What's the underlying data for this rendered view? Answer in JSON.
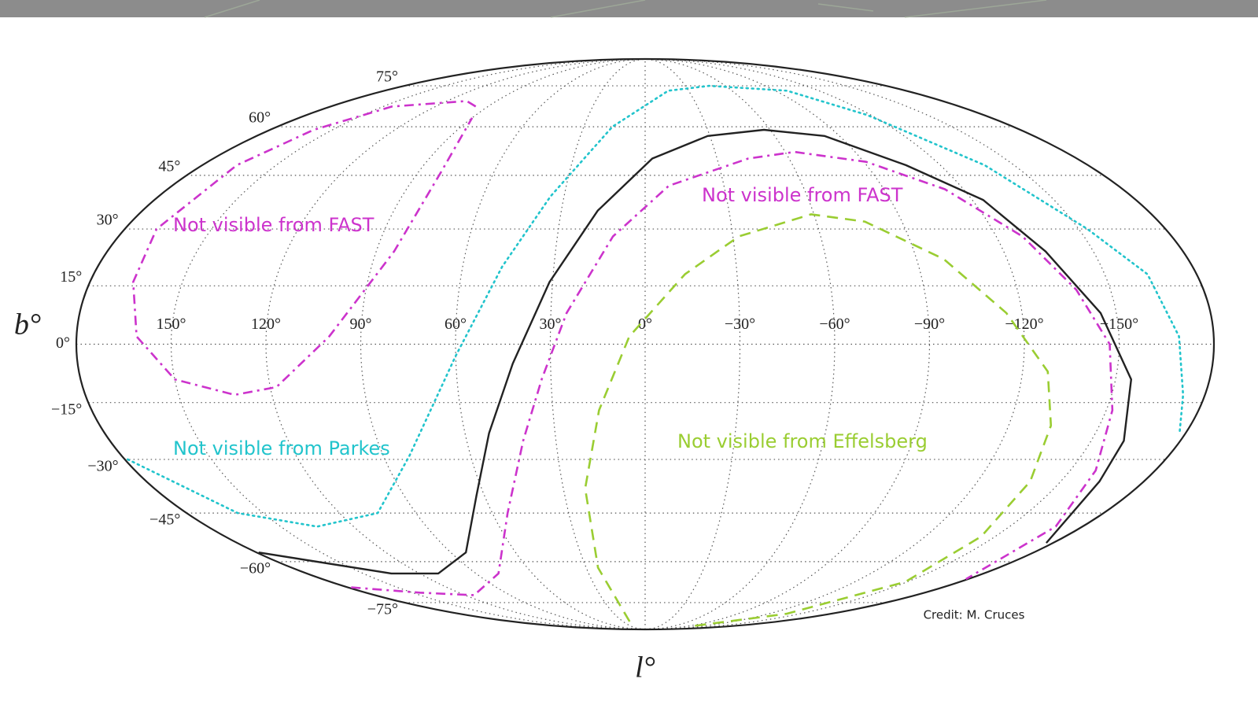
{
  "chart_data": {
    "type": "mollweide",
    "xlabel": "l°",
    "ylabel": "b°",
    "xlim": [
      180,
      -180
    ],
    "ylim": [
      -90,
      90
    ],
    "grid": true,
    "xticks": [
      {
        "value": 150,
        "label": "150°"
      },
      {
        "value": 120,
        "label": "120°"
      },
      {
        "value": 90,
        "label": "90°"
      },
      {
        "value": 60,
        "label": "60°"
      },
      {
        "value": 30,
        "label": "30°"
      },
      {
        "value": 0,
        "label": "0°"
      },
      {
        "value": -30,
        "label": "−30°"
      },
      {
        "value": -60,
        "label": "−60°"
      },
      {
        "value": -90,
        "label": "−90°"
      },
      {
        "value": -120,
        "label": "−120°"
      },
      {
        "value": -150,
        "label": "−150°"
      }
    ],
    "yticks": [
      {
        "value": 75,
        "label": "75°"
      },
      {
        "value": 60,
        "label": "60°"
      },
      {
        "value": 45,
        "label": "45°"
      },
      {
        "value": 30,
        "label": "30°"
      },
      {
        "value": 15,
        "label": "15°"
      },
      {
        "value": 0,
        "label": "0°"
      },
      {
        "value": -15,
        "label": "−15°"
      },
      {
        "value": -30,
        "label": "−30°"
      },
      {
        "value": -45,
        "label": "−45°"
      },
      {
        "value": -60,
        "label": "−60°"
      },
      {
        "value": -75,
        "label": "−75°"
      }
    ],
    "series": [
      {
        "color": "#222222",
        "linestyle": "solid",
        "x": [
          179,
          135,
          110,
          83,
          63,
          52,
          42,
          31,
          17,
          -3,
          -29,
          -57,
          -83,
          -106,
          -124,
          -134,
          -145,
          -155,
          -161,
          -164,
          -177
        ],
        "values": [
          -57,
          -64,
          -64,
          -57,
          -40,
          -23,
          -5,
          16,
          35,
          50,
          57,
          59,
          57,
          48,
          38,
          24,
          8,
          -9,
          -25,
          -36,
          -54
        ]
      },
      {
        "color": "#cc33cc",
        "linestyle": "dashdot",
        "x": [
          97,
          108,
          145,
          159,
          166,
          169,
          166,
          161,
          150,
          132,
          118,
          100,
          84,
          81,
          90,
          null,
          178,
          145,
          114,
          78,
          54,
          41,
          33,
          25,
          11,
          -9,
          -43,
          -64,
          -91,
          -113,
          -129,
          -139,
          -147,
          -152,
          -159,
          -169,
          -179
        ],
        "values": [
          67,
          69,
          67,
          59,
          48,
          30,
          16,
          2,
          -9,
          -13,
          -11,
          2,
          24,
          46,
          63,
          null,
          -69,
          -71,
          -72,
          -64,
          -45,
          -25,
          -9,
          8,
          28,
          42,
          50,
          52,
          49,
          41,
          28,
          14,
          0,
          -17,
          -33,
          -49,
          -66
        ]
      },
      {
        "color": "#22c4cc",
        "linestyle": "dotted",
        "x": [
          179,
          160,
          135,
          105,
          81,
          60,
          47,
          35,
          16,
          -16,
          -48,
          -98,
          -118,
          -138,
          -153,
          -164,
          -169,
          -173,
          -178
        ],
        "values": [
          -30,
          -45,
          -49,
          -45,
          -29,
          -3,
          20,
          39,
          60,
          73,
          75,
          73,
          64,
          48,
          30,
          18,
          2,
          -13,
          -23
        ]
      },
      {
        "color": "#9acd32",
        "linestyle": "dashed",
        "x": [
          21,
          24,
          22,
          15,
          5,
          -13,
          -32,
          -59,
          -77,
          -99,
          -115,
          -128,
          -134,
          -139,
          -144,
          -149,
          -137,
          -99
        ],
        "values": [
          -84,
          -62,
          -38,
          -17,
          2,
          18,
          28,
          34,
          32,
          22,
          8,
          -7,
          -21,
          -36,
          -52,
          -67,
          -80,
          -87
        ]
      }
    ],
    "annotations": [
      {
        "text": "Not visible from FAST",
        "color": "#cc33cc"
      },
      {
        "text": "Not visible from FAST",
        "color": "#cc33cc"
      },
      {
        "text": "Not visible from Parkes",
        "color": "#22c4cc"
      },
      {
        "text": "Not visible from Effelsberg",
        "color": "#9acd32"
      }
    ],
    "credit": "Credit: M. Cruces"
  }
}
